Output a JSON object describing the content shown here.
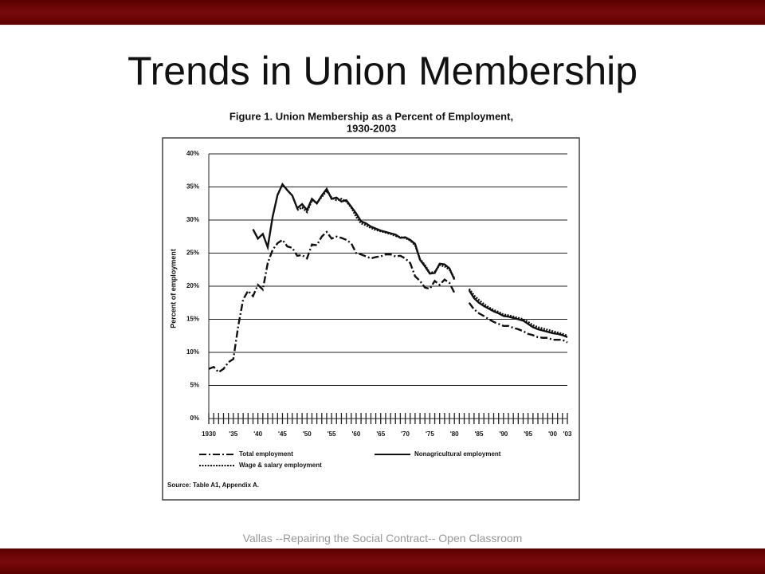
{
  "slide": {
    "title": "Trends in Union Membership",
    "footer": "Vallas --Repairing the Social Contract-- Open Classroom"
  },
  "chart_data": {
    "type": "line",
    "title": "Figure 1.  Union Membership as a Percent of Employment,",
    "subtitle": "1930-2003",
    "y_label": "Percent of employment",
    "source": "Source:   Table A1, Appendix A.",
    "x": [
      1930,
      1931,
      1932,
      1933,
      1934,
      1935,
      1936,
      1937,
      1938,
      1939,
      1940,
      1941,
      1942,
      1943,
      1944,
      1945,
      1946,
      1947,
      1948,
      1949,
      1950,
      1951,
      1952,
      1953,
      1954,
      1955,
      1956,
      1957,
      1958,
      1959,
      1960,
      1961,
      1962,
      1963,
      1964,
      1965,
      1966,
      1967,
      1968,
      1969,
      1970,
      1971,
      1972,
      1973,
      1974,
      1975,
      1976,
      1977,
      1978,
      1979,
      1980,
      1981,
      1982,
      1983,
      1984,
      1985,
      1986,
      1987,
      1988,
      1989,
      1990,
      1991,
      1992,
      1993,
      1994,
      1995,
      1996,
      1997,
      1998,
      1999,
      2000,
      2001,
      2002,
      2003
    ],
    "xlim": [
      1930,
      2003
    ],
    "xticks": [
      {
        "value": 1930,
        "label": "1930"
      },
      {
        "value": 1935,
        "label": "'35"
      },
      {
        "value": 1940,
        "label": "'40"
      },
      {
        "value": 1945,
        "label": "'45"
      },
      {
        "value": 1950,
        "label": "'50"
      },
      {
        "value": 1955,
        "label": "'55"
      },
      {
        "value": 1960,
        "label": "'60"
      },
      {
        "value": 1965,
        "label": "'65"
      },
      {
        "value": 1970,
        "label": "'70"
      },
      {
        "value": 1975,
        "label": "'75"
      },
      {
        "value": 1980,
        "label": "'80"
      },
      {
        "value": 1985,
        "label": "'85"
      },
      {
        "value": 1990,
        "label": "'90"
      },
      {
        "value": 1995,
        "label": "'95"
      },
      {
        "value": 2000,
        "label": "'00"
      },
      {
        "value": 2003,
        "label": "'03"
      }
    ],
    "ylim": [
      0,
      40
    ],
    "yticks": [
      {
        "value": 0,
        "label": "0%"
      },
      {
        "value": 5,
        "label": "5%"
      },
      {
        "value": 10,
        "label": "10%"
      },
      {
        "value": 15,
        "label": "15%"
      },
      {
        "value": 20,
        "label": "20%"
      },
      {
        "value": 25,
        "label": "25%"
      },
      {
        "value": 30,
        "label": "30%"
      },
      {
        "value": 35,
        "label": "35%"
      },
      {
        "value": 40,
        "label": "40%"
      }
    ],
    "grid": true,
    "series": [
      {
        "name": "Total employment",
        "color": "#111111",
        "style": "dashed",
        "values": [
          7.5,
          7.8,
          7.0,
          7.5,
          8.5,
          9.0,
          14.0,
          18.0,
          19.3,
          18.5,
          20.2,
          19.5,
          23.5,
          25.5,
          26.5,
          27.0,
          26.0,
          25.8,
          24.6,
          24.7,
          24.2,
          26.3,
          26.2,
          27.5,
          28.2,
          27.2,
          27.5,
          27.3,
          27.0,
          26.5,
          25.0,
          24.8,
          24.5,
          24.2,
          24.4,
          24.5,
          24.8,
          24.8,
          24.5,
          24.6,
          24.2,
          23.5,
          21.5,
          20.8,
          19.8,
          19.6,
          20.8,
          20.2,
          21.0,
          20.5,
          19.0,
          null,
          null,
          17.5,
          16.5,
          15.9,
          15.5,
          15.0,
          14.6,
          14.3,
          14.0,
          14.0,
          13.7,
          13.5,
          13.2,
          12.8,
          12.6,
          12.3,
          12.2,
          12.2,
          11.9,
          11.9,
          11.9,
          11.5
        ]
      },
      {
        "name": "Nonagricultural employment",
        "color": "#111111",
        "style": "solid",
        "values": [
          null,
          null,
          null,
          null,
          null,
          null,
          null,
          null,
          null,
          28.6,
          27.2,
          27.9,
          25.9,
          30.5,
          33.8,
          35.4,
          34.5,
          33.7,
          31.8,
          32.4,
          31.5,
          33.2,
          32.5,
          33.7,
          34.7,
          33.2,
          33.4,
          32.8,
          33.0,
          32.0,
          31.0,
          29.8,
          29.5,
          29.0,
          28.7,
          28.4,
          28.2,
          28.0,
          27.8,
          27.3,
          27.4,
          27.0,
          26.4,
          24.0,
          23.0,
          21.9,
          22.0,
          23.4,
          23.3,
          22.7,
          21.0,
          null,
          null,
          19.4,
          18.2,
          17.5,
          17.0,
          16.6,
          16.2,
          15.9,
          15.5,
          15.4,
          15.2,
          15.0,
          14.8,
          14.3,
          13.8,
          13.5,
          13.3,
          13.1,
          12.9,
          12.8,
          12.6,
          12.3
        ]
      },
      {
        "name": "Wage & salary employment",
        "color": "#111111",
        "style": "dotted",
        "values": [
          null,
          null,
          null,
          null,
          null,
          null,
          null,
          null,
          null,
          null,
          null,
          null,
          null,
          null,
          null,
          null,
          null,
          null,
          31.5,
          31.9,
          31.2,
          33.0,
          32.6,
          33.5,
          34.4,
          33.4,
          33.0,
          33.2,
          32.8,
          31.9,
          30.5,
          29.5,
          29.2,
          28.8,
          28.5,
          28.3,
          28.1,
          27.9,
          27.6,
          27.4,
          27.3,
          26.9,
          26.2,
          24.1,
          23.2,
          22.0,
          22.2,
          23.2,
          23.0,
          22.5,
          21.2,
          null,
          null,
          19.6,
          18.6,
          17.9,
          17.3,
          16.8,
          16.4,
          16.1,
          15.7,
          15.6,
          15.4,
          15.2,
          15.0,
          14.6,
          14.1,
          13.8,
          13.6,
          13.4,
          13.2,
          13.0,
          12.8,
          12.5
        ]
      }
    ]
  }
}
